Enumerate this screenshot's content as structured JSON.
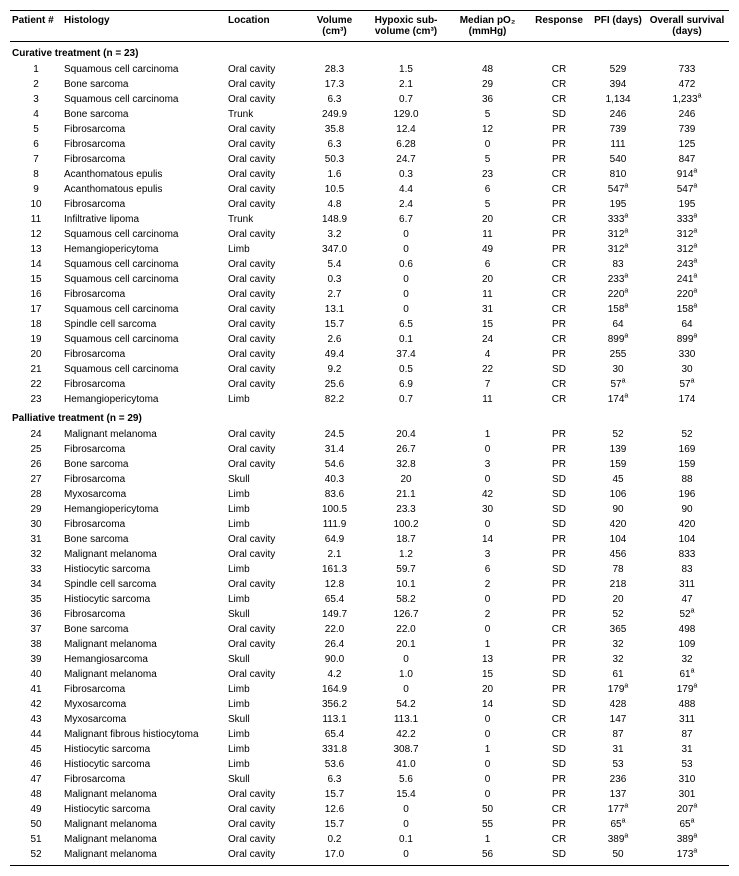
{
  "headers": {
    "patient": "Patient #",
    "histology": "Histology",
    "location": "Location",
    "volume": "Volume (cm³)",
    "hypoxic": "Hypoxic sub-volume (cm³)",
    "po2": "Median pO₂ (mmHg)",
    "response": "Response",
    "pfi": "PFI (days)",
    "os": "Overall survival (days)"
  },
  "sections": [
    {
      "title": "Curative treatment (n = 23)",
      "rows": [
        {
          "n": "1",
          "hist": "Squamous cell carcinoma",
          "loc": "Oral cavity",
          "vol": "28.3",
          "hyp": "1.5",
          "po2": "48",
          "resp": "CR",
          "pfi": "529",
          "os": "733"
        },
        {
          "n": "2",
          "hist": "Bone sarcoma",
          "loc": "Oral cavity",
          "vol": "17.3",
          "hyp": "2.1",
          "po2": "29",
          "resp": "CR",
          "pfi": "394",
          "os": "472"
        },
        {
          "n": "3",
          "hist": "Squamous cell carcinoma",
          "loc": "Oral cavity",
          "vol": "6.3",
          "hyp": "0.7",
          "po2": "36",
          "resp": "CR",
          "pfi": "1,134",
          "os": "1,233",
          "os_sup": "a"
        },
        {
          "n": "4",
          "hist": "Bone sarcoma",
          "loc": "Trunk",
          "vol": "249.9",
          "hyp": "129.0",
          "po2": "5",
          "resp": "SD",
          "pfi": "246",
          "os": "246"
        },
        {
          "n": "5",
          "hist": "Fibrosarcoma",
          "loc": "Oral cavity",
          "vol": "35.8",
          "hyp": "12.4",
          "po2": "12",
          "resp": "PR",
          "pfi": "739",
          "os": "739"
        },
        {
          "n": "6",
          "hist": "Fibrosarcoma",
          "loc": "Oral cavity",
          "vol": "6.3",
          "hyp": "6.28",
          "po2": "0",
          "resp": "PR",
          "pfi": "111",
          "os": "125"
        },
        {
          "n": "7",
          "hist": "Fibrosarcoma",
          "loc": "Oral cavity",
          "vol": "50.3",
          "hyp": "24.7",
          "po2": "5",
          "resp": "PR",
          "pfi": "540",
          "os": "847"
        },
        {
          "n": "8",
          "hist": "Acanthomatous epulis",
          "loc": "Oral cavity",
          "vol": "1.6",
          "hyp": "0.3",
          "po2": "23",
          "resp": "CR",
          "pfi": "810",
          "os": "914",
          "os_sup": "a"
        },
        {
          "n": "9",
          "hist": "Acanthomatous epulis",
          "loc": "Oral cavity",
          "vol": "10.5",
          "hyp": "4.4",
          "po2": "6",
          "resp": "CR",
          "pfi": "547",
          "pfi_sup": "a",
          "os": "547",
          "os_sup": "a"
        },
        {
          "n": "10",
          "hist": "Fibrosarcoma",
          "loc": "Oral cavity",
          "vol": "4.8",
          "hyp": "2.4",
          "po2": "5",
          "resp": "PR",
          "pfi": "195",
          "os": "195"
        },
        {
          "n": "11",
          "hist": "Infiltrative lipoma",
          "loc": "Trunk",
          "vol": "148.9",
          "hyp": "6.7",
          "po2": "20",
          "resp": "CR",
          "pfi": "333",
          "pfi_sup": "a",
          "os": "333",
          "os_sup": "a"
        },
        {
          "n": "12",
          "hist": "Squamous cell carcinoma",
          "loc": "Oral cavity",
          "vol": "3.2",
          "hyp": "0",
          "po2": "11",
          "resp": "PR",
          "pfi": "312",
          "pfi_sup": "a",
          "os": "312",
          "os_sup": "a"
        },
        {
          "n": "13",
          "hist": "Hemangiopericytoma",
          "loc": "Limb",
          "vol": "347.0",
          "hyp": "0",
          "po2": "49",
          "resp": "PR",
          "pfi": "312",
          "pfi_sup": "a",
          "os": "312",
          "os_sup": "a"
        },
        {
          "n": "14",
          "hist": "Squamous cell carcinoma",
          "loc": "Oral cavity",
          "vol": "5.4",
          "hyp": "0.6",
          "po2": "6",
          "resp": "CR",
          "pfi": "83",
          "os": "243",
          "os_sup": "a"
        },
        {
          "n": "15",
          "hist": "Squamous cell carcinoma",
          "loc": "Oral cavity",
          "vol": "0.3",
          "hyp": "0",
          "po2": "20",
          "resp": "CR",
          "pfi": "233",
          "pfi_sup": "a",
          "os": "241",
          "os_sup": "a"
        },
        {
          "n": "16",
          "hist": "Fibrosarcoma",
          "loc": "Oral cavity",
          "vol": "2.7",
          "hyp": "0",
          "po2": "11",
          "resp": "CR",
          "pfi": "220",
          "pfi_sup": "a",
          "os": "220",
          "os_sup": "a"
        },
        {
          "n": "17",
          "hist": "Squamous cell carcinoma",
          "loc": "Oral cavity",
          "vol": "13.1",
          "hyp": "0",
          "po2": "31",
          "resp": "CR",
          "pfi": "158",
          "pfi_sup": "a",
          "os": "158",
          "os_sup": "a"
        },
        {
          "n": "18",
          "hist": "Spindle cell sarcoma",
          "loc": "Oral cavity",
          "vol": "15.7",
          "hyp": "6.5",
          "po2": "15",
          "resp": "PR",
          "pfi": "64",
          "os": "64"
        },
        {
          "n": "19",
          "hist": "Squamous cell carcinoma",
          "loc": "Oral cavity",
          "vol": "2.6",
          "hyp": "0.1",
          "po2": "24",
          "resp": "CR",
          "pfi": "899",
          "pfi_sup": "a",
          "os": "899",
          "os_sup": "a"
        },
        {
          "n": "20",
          "hist": "Fibrosarcoma",
          "loc": "Oral cavity",
          "vol": "49.4",
          "hyp": "37.4",
          "po2": "4",
          "resp": "PR",
          "pfi": "255",
          "os": "330"
        },
        {
          "n": "21",
          "hist": "Squamous cell carcinoma",
          "loc": "Oral cavity",
          "vol": "9.2",
          "hyp": "0.5",
          "po2": "22",
          "resp": "SD",
          "pfi": "30",
          "os": "30"
        },
        {
          "n": "22",
          "hist": "Fibrosarcoma",
          "loc": "Oral cavity",
          "vol": "25.6",
          "hyp": "6.9",
          "po2": "7",
          "resp": "CR",
          "pfi": "57",
          "pfi_sup": "a",
          "os": "57",
          "os_sup": "a"
        },
        {
          "n": "23",
          "hist": "Hemangiopericytoma",
          "loc": "Limb",
          "vol": "82.2",
          "hyp": "0.7",
          "po2": "11",
          "resp": "CR",
          "pfi": "174",
          "pfi_sup": "a",
          "os": "174"
        }
      ]
    },
    {
      "title": "Palliative treatment (n = 29)",
      "rows": [
        {
          "n": "24",
          "hist": "Malignant melanoma",
          "loc": "Oral cavity",
          "vol": "24.5",
          "hyp": "20.4",
          "po2": "1",
          "resp": "PR",
          "pfi": "52",
          "os": "52"
        },
        {
          "n": "25",
          "hist": "Fibrosarcoma",
          "loc": "Oral cavity",
          "vol": "31.4",
          "hyp": "26.7",
          "po2": "0",
          "resp": "PR",
          "pfi": "139",
          "os": "169"
        },
        {
          "n": "26",
          "hist": "Bone sarcoma",
          "loc": "Oral cavity",
          "vol": "54.6",
          "hyp": "32.8",
          "po2": "3",
          "resp": "PR",
          "pfi": "159",
          "os": "159"
        },
        {
          "n": "27",
          "hist": "Fibrosarcoma",
          "loc": "Skull",
          "vol": "40.3",
          "hyp": "20",
          "po2": "0",
          "resp": "SD",
          "pfi": "45",
          "os": "88"
        },
        {
          "n": "28",
          "hist": "Myxosarcoma",
          "loc": "Limb",
          "vol": "83.6",
          "hyp": "21.1",
          "po2": "42",
          "resp": "SD",
          "pfi": "106",
          "os": "196"
        },
        {
          "n": "29",
          "hist": "Hemangiopericytoma",
          "loc": "Limb",
          "vol": "100.5",
          "hyp": "23.3",
          "po2": "30",
          "resp": "SD",
          "pfi": "90",
          "os": "90"
        },
        {
          "n": "30",
          "hist": "Fibrosarcoma",
          "loc": "Limb",
          "vol": "111.9",
          "hyp": "100.2",
          "po2": "0",
          "resp": "SD",
          "pfi": "420",
          "os": "420"
        },
        {
          "n": "31",
          "hist": "Bone sarcoma",
          "loc": "Oral cavity",
          "vol": "64.9",
          "hyp": "18.7",
          "po2": "14",
          "resp": "PR",
          "pfi": "104",
          "os": "104"
        },
        {
          "n": "32",
          "hist": "Malignant melanoma",
          "loc": "Oral cavity",
          "vol": "2.1",
          "hyp": "1.2",
          "po2": "3",
          "resp": "PR",
          "pfi": "456",
          "os": "833"
        },
        {
          "n": "33",
          "hist": "Histiocytic sarcoma",
          "loc": "Limb",
          "vol": "161.3",
          "hyp": "59.7",
          "po2": "6",
          "resp": "SD",
          "pfi": "78",
          "os": "83"
        },
        {
          "n": "34",
          "hist": "Spindle cell sarcoma",
          "loc": "Oral cavity",
          "vol": "12.8",
          "hyp": "10.1",
          "po2": "2",
          "resp": "PR",
          "pfi": "218",
          "os": "311"
        },
        {
          "n": "35",
          "hist": "Histiocytic sarcoma",
          "loc": "Limb",
          "vol": "65.4",
          "hyp": "58.2",
          "po2": "0",
          "resp": "PD",
          "pfi": "20",
          "os": "47"
        },
        {
          "n": "36",
          "hist": "Fibrosarcoma",
          "loc": "Skull",
          "vol": "149.7",
          "hyp": "126.7",
          "po2": "2",
          "resp": "PR",
          "pfi": "52",
          "os": "52",
          "os_sup": "a"
        },
        {
          "n": "37",
          "hist": "Bone sarcoma",
          "loc": "Oral cavity",
          "vol": "22.0",
          "hyp": "22.0",
          "po2": "0",
          "resp": "CR",
          "pfi": "365",
          "os": "498"
        },
        {
          "n": "38",
          "hist": "Malignant melanoma",
          "loc": "Oral cavity",
          "vol": "26.4",
          "hyp": "20.1",
          "po2": "1",
          "resp": "PR",
          "pfi": "32",
          "os": "109"
        },
        {
          "n": "39",
          "hist": "Hemangiosarcoma",
          "loc": "Skull",
          "vol": "90.0",
          "hyp": "0",
          "po2": "13",
          "resp": "PR",
          "pfi": "32",
          "os": "32"
        },
        {
          "n": "40",
          "hist": "Malignant melanoma",
          "loc": "Oral cavity",
          "vol": "4.2",
          "hyp": "1.0",
          "po2": "15",
          "resp": "SD",
          "pfi": "61",
          "os": "61",
          "os_sup": "a"
        },
        {
          "n": "41",
          "hist": "Fibrosarcoma",
          "loc": "Limb",
          "vol": "164.9",
          "hyp": "0",
          "po2": "20",
          "resp": "PR",
          "pfi": "179",
          "pfi_sup": "a",
          "os": "179",
          "os_sup": "a"
        },
        {
          "n": "42",
          "hist": "Myxosarcoma",
          "loc": "Limb",
          "vol": "356.2",
          "hyp": "54.2",
          "po2": "14",
          "resp": "SD",
          "pfi": "428",
          "os": "488"
        },
        {
          "n": "43",
          "hist": "Myxosarcoma",
          "loc": "Skull",
          "vol": "113.1",
          "hyp": "113.1",
          "po2": "0",
          "resp": "CR",
          "pfi": "147",
          "os": "311"
        },
        {
          "n": "44",
          "hist": "Malignant fibrous histiocytoma",
          "loc": "Limb",
          "vol": "65.4",
          "hyp": "42.2",
          "po2": "0",
          "resp": "CR",
          "pfi": "87",
          "os": "87"
        },
        {
          "n": "45",
          "hist": "Histiocytic sarcoma",
          "loc": "Limb",
          "vol": "331.8",
          "hyp": "308.7",
          "po2": "1",
          "resp": "SD",
          "pfi": "31",
          "os": "31"
        },
        {
          "n": "46",
          "hist": "Histiocytic sarcoma",
          "loc": "Limb",
          "vol": "53.6",
          "hyp": "41.0",
          "po2": "0",
          "resp": "SD",
          "pfi": "53",
          "os": "53"
        },
        {
          "n": "47",
          "hist": "Fibrosarcoma",
          "loc": "Skull",
          "vol": "6.3",
          "hyp": "5.6",
          "po2": "0",
          "resp": "PR",
          "pfi": "236",
          "os": "310"
        },
        {
          "n": "48",
          "hist": "Malignant melanoma",
          "loc": "Oral cavity",
          "vol": "15.7",
          "hyp": "15.4",
          "po2": "0",
          "resp": "PR",
          "pfi": "137",
          "os": "301"
        },
        {
          "n": "49",
          "hist": "Histiocytic sarcoma",
          "loc": "Oral cavity",
          "vol": "12.6",
          "hyp": "0",
          "po2": "50",
          "resp": "CR",
          "pfi": "177",
          "pfi_sup": "a",
          "os": "207",
          "os_sup": "a"
        },
        {
          "n": "50",
          "hist": "Malignant melanoma",
          "loc": "Oral cavity",
          "vol": "15.7",
          "hyp": "0",
          "po2": "55",
          "resp": "PR",
          "pfi": "65",
          "pfi_sup": "a",
          "os": "65",
          "os_sup": "a"
        },
        {
          "n": "51",
          "hist": "Malignant melanoma",
          "loc": "Oral cavity",
          "vol": "0.2",
          "hyp": "0.1",
          "po2": "1",
          "resp": "CR",
          "pfi": "389",
          "pfi_sup": "a",
          "os": "389",
          "os_sup": "a"
        },
        {
          "n": "52",
          "hist": "Malignant melanoma",
          "loc": "Oral cavity",
          "vol": "17.0",
          "hyp": "0",
          "po2": "56",
          "resp": "SD",
          "pfi": "50",
          "os": "173",
          "os_sup": "a"
        }
      ]
    }
  ]
}
